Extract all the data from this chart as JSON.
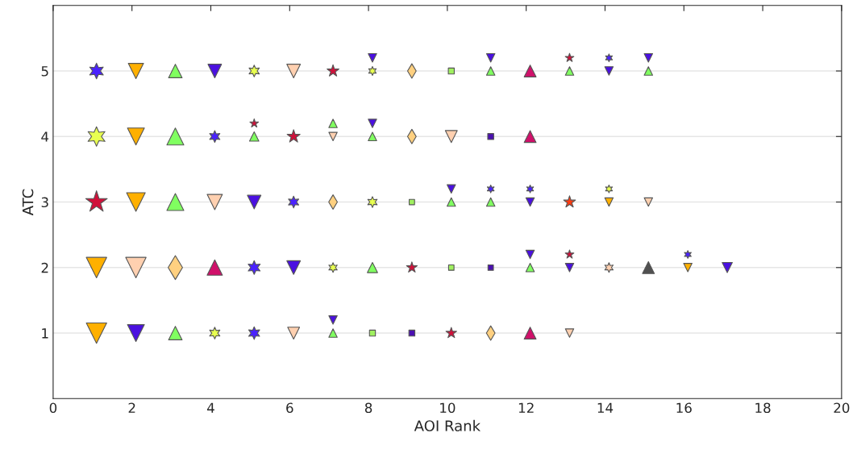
{
  "chart_data": {
    "type": "bubble",
    "xlabel": "AOI Rank",
    "ylabel": "ATC",
    "xlim": [
      0,
      20
    ],
    "xticks": [
      0,
      2,
      4,
      6,
      8,
      10,
      12,
      14,
      16,
      18,
      20
    ],
    "ylim": [
      0,
      6
    ],
    "yticks": [
      1,
      2,
      3,
      4,
      5
    ],
    "grid": "y",
    "series": [
      {
        "color": "#4a22ff",
        "x": [
          1.1,
          14.1,
          4.1,
          6.1,
          11.1,
          12.1,
          5.1,
          16.1,
          5.1
        ],
        "values": [
          5,
          5.2,
          4,
          3,
          3.2,
          3.2,
          2,
          2.2,
          1
        ],
        "sizes": [
          0.44,
          0.11,
          0.25,
          0.25,
          0.11,
          0.11,
          0.34,
          0.11,
          0.29
        ]
      },
      {
        "marker": "triangle-down",
        "color": "#ffb000",
        "x": [
          2.1,
          2.1,
          2.1,
          14.1,
          1.1,
          16.1,
          1.1
        ],
        "values": [
          5,
          4,
          3,
          3,
          2,
          2,
          1
        ],
        "sizes": [
          0.56,
          0.69,
          0.84,
          0.17,
          1,
          0.17,
          1
        ]
      },
      {
        "marker": "triangle",
        "color": "#80ff60",
        "x": [
          3.1,
          11.1,
          13.1,
          15.1,
          3.1,
          5.1,
          7.1,
          8.1,
          3.1,
          10.1,
          11.1,
          8.1,
          12.1,
          3.1,
          7.1
        ],
        "values": [
          5,
          5,
          5,
          5,
          4,
          4,
          4.2,
          4,
          3,
          3,
          3,
          2,
          2,
          1,
          1
        ],
        "sizes": [
          0.44,
          0.17,
          0.17,
          0.17,
          0.69,
          0.21,
          0.17,
          0.17,
          0.69,
          0.17,
          0.17,
          0.25,
          0.17,
          0.44,
          0.17
        ]
      },
      {
        "marker": "triangle-down",
        "color": "#4a10e0",
        "x": [
          4.1,
          8.1,
          11.1,
          14.1,
          15.1,
          8.1,
          5.1,
          10.1,
          12.1,
          6.1,
          12.1,
          13.1,
          17.1,
          2.1,
          7.1
        ],
        "values": [
          5,
          5.2,
          5.2,
          5,
          5.2,
          4.2,
          3,
          3.2,
          3,
          2,
          2.2,
          2,
          2,
          1,
          1.2
        ],
        "sizes": [
          0.44,
          0.17,
          0.17,
          0.17,
          0.17,
          0.17,
          0.44,
          0.17,
          0.17,
          0.44,
          0.17,
          0.17,
          0.25,
          0.69,
          0.17
        ]
      },
      {
        "color": "#e8ff50",
        "x": [
          5.1,
          8.1,
          1.1,
          8.1,
          14.1,
          7.1,
          4.1
        ],
        "values": [
          5,
          5,
          4,
          3,
          3.2,
          2,
          1
        ],
        "sizes": [
          0.25,
          0.14,
          0.69,
          0.21,
          0.11,
          0.17,
          0.25
        ]
      },
      {
        "marker": "triangle-down",
        "color": "#ffd0b0",
        "x": [
          6.1,
          7.1,
          10.1,
          4.1,
          15.1,
          2.1,
          6.1,
          13.1
        ],
        "values": [
          5,
          4,
          4,
          3,
          3,
          2,
          1,
          1
        ],
        "sizes": [
          0.44,
          0.17,
          0.34,
          0.56,
          0.17,
          1,
          0.34,
          0.17
        ]
      },
      {
        "marker": "star",
        "color": "#d0103a",
        "x": [
          7.1,
          13.1,
          5.1,
          6.1,
          1.1,
          9.1,
          13.1,
          10.1
        ],
        "values": [
          5,
          5.2,
          4.2,
          4,
          3,
          2,
          2.2,
          1
        ],
        "sizes": [
          0.21,
          0.11,
          0.11,
          0.25,
          0.69,
          0.17,
          0.11,
          0.17
        ]
      },
      {
        "marker": "diamond",
        "color": "#ffd080",
        "x": [
          9.1,
          9.1,
          7.1,
          3.1,
          11.1
        ],
        "values": [
          5,
          4,
          3,
          2,
          1
        ],
        "sizes": [
          0.25,
          0.25,
          0.25,
          0.69,
          0.25
        ]
      },
      {
        "marker": "square",
        "color": "#a0f060",
        "x": [
          10.1,
          9.1,
          10.1,
          8.1
        ],
        "values": [
          5,
          3,
          2,
          1
        ],
        "sizes": [
          0.17,
          0.14,
          0.14,
          0.17
        ]
      },
      {
        "marker": "triangle",
        "color": "#d0106a",
        "x": [
          12.1,
          12.1,
          4.1,
          12.1
        ],
        "values": [
          5,
          4,
          2,
          1
        ],
        "sizes": [
          0.34,
          0.34,
          0.56,
          0.34
        ]
      },
      {
        "marker": "square",
        "color": "#4a10b0",
        "x": [
          11.1,
          11.1,
          9.1
        ],
        "values": [
          4,
          2,
          1
        ],
        "sizes": [
          0.17,
          0.14,
          0.17
        ]
      },
      {
        "marker": "star",
        "color": "#ff3a10",
        "x": [
          13.1
        ],
        "values": [
          3
        ],
        "sizes": [
          0.21
        ]
      },
      {
        "marker": "triangle",
        "color": "#505050",
        "x": [
          15.1
        ],
        "values": [
          2
        ],
        "sizes": [
          0.34
        ]
      },
      {
        "color": "#ffd0b0",
        "x": [
          14.1
        ],
        "values": [
          2
        ],
        "sizes": [
          0.17
        ]
      }
    ]
  }
}
